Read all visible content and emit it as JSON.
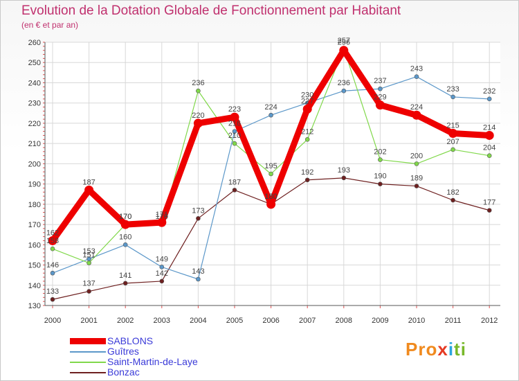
{
  "chart_data": {
    "type": "line",
    "title": "Evolution de la Dotation Globale de Fonctionnement par Habitant",
    "subtitle": "(en € et par an)",
    "xlabel": "",
    "ylabel": "",
    "categories": [
      "2000",
      "2001",
      "2002",
      "2003",
      "2004",
      "2005",
      "2006",
      "2007",
      "2008",
      "2009",
      "2010",
      "2011",
      "2012"
    ],
    "ylim": [
      130,
      260
    ],
    "yticks": [
      "130",
      "140",
      "150",
      "160",
      "170",
      "180",
      "190",
      "200",
      "210",
      "220",
      "230",
      "240",
      "250",
      "260"
    ],
    "grid": true,
    "legend_position": "bottom-left",
    "series": [
      {
        "name": "SABLONS",
        "color": "#ee0000",
        "values": [
          162,
          187,
          170,
          171,
          220,
          223,
          180,
          227,
          256,
          229,
          224,
          215,
          214
        ]
      },
      {
        "name": "Guîtres",
        "color": "#5b97c9",
        "values": [
          146,
          153,
          160,
          149,
          143,
          216,
          224,
          230,
          236,
          237,
          243,
          233,
          232
        ]
      },
      {
        "name": "Saint-Martin-de-Laye",
        "color": "#80d84a",
        "values": [
          158,
          151,
          170,
          170,
          236,
          210,
          195,
          212,
          257,
          202,
          200,
          207,
          204
        ]
      },
      {
        "name": "Bonzac",
        "color": "#6e2020",
        "values": [
          133,
          137,
          141,
          142,
          173,
          187,
          180,
          192,
          193,
          190,
          189,
          182,
          177
        ]
      }
    ]
  },
  "logo": {
    "p1": "Pro",
    "p2": "x",
    "p3": "i",
    "p4": "ti"
  }
}
